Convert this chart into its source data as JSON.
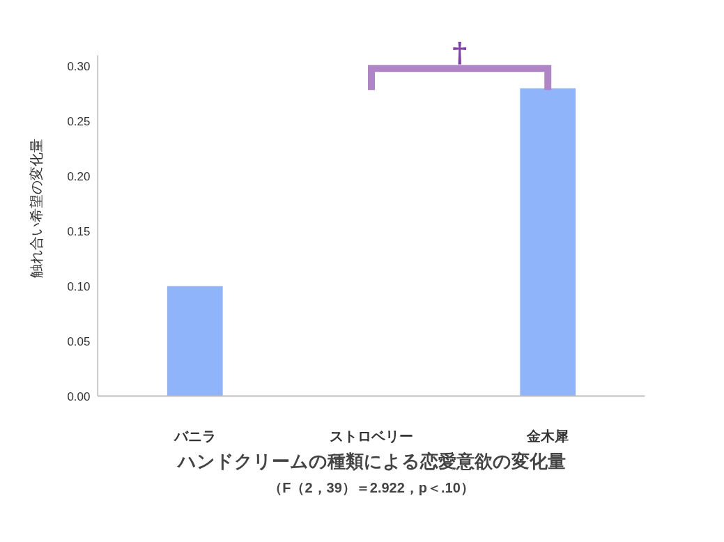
{
  "chart_data": {
    "type": "bar",
    "title": "ハンドクリームの種類による恋愛意欲の変化量",
    "subtitle": "（F（2，39）＝2.922，p＜.10）",
    "ylabel": "触れ合い希望の変化量",
    "categories": [
      "バニラ",
      "ストロベリー",
      "金木犀"
    ],
    "values": [
      0.1,
      0.0,
      0.28
    ],
    "color": "#8fb4f9",
    "ylim": [
      0,
      0.31
    ],
    "yticks": [
      {
        "value": 0,
        "label": "0.00"
      },
      {
        "value": 0.05,
        "label": "0.05"
      },
      {
        "value": 0.1,
        "label": "0.10"
      },
      {
        "value": 0.15,
        "label": "0.15"
      },
      {
        "value": 0.2,
        "label": "0.20"
      },
      {
        "value": 0.25,
        "label": "0.25"
      },
      {
        "value": 0.3,
        "label": "0.30"
      }
    ],
    "grid": false,
    "annotations": [
      "†"
    ]
  }
}
